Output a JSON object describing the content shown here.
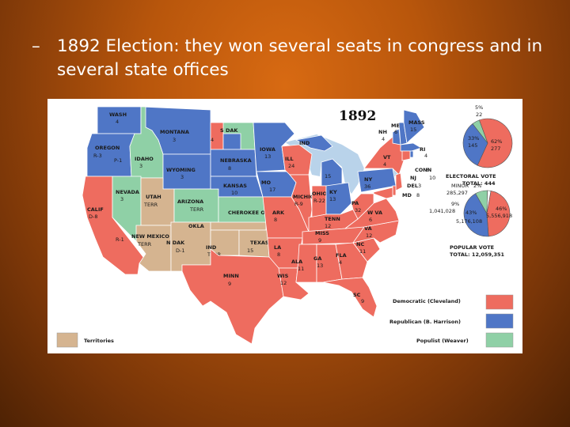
{
  "slide": {
    "bullet_dash": "–",
    "bullet_text": "1892 Election: they won several seats in congress and in several state offices"
  },
  "map": {
    "year": "1892",
    "colors": {
      "democratic": "#ee6c5f",
      "republican": "#4f76c6",
      "populist": "#8fd0a6",
      "territories": "#d5b490",
      "water": "#b9d3ea"
    },
    "states": [
      {
        "key": "wash",
        "name": "WASH",
        "ev": "4",
        "party": "republican"
      },
      {
        "key": "oregon",
        "name": "OREGON",
        "ev": "R-3",
        "ev2": "P-1",
        "party": "republican"
      },
      {
        "key": "calif",
        "name": "CALIF",
        "ev": "D-8",
        "ev2": "R-1",
        "party": "democratic"
      },
      {
        "key": "montana",
        "name": "MONTANA",
        "ev": "3",
        "party": "republican"
      },
      {
        "key": "idaho",
        "name": "IDAHO",
        "ev": "3",
        "party": "populist"
      },
      {
        "key": "nevada",
        "name": "NEVADA",
        "ev": "3",
        "party": "populist"
      },
      {
        "key": "wyoming",
        "name": "WYOMING",
        "ev": "3",
        "party": "republican"
      },
      {
        "key": "utah",
        "name": "UTAH",
        "ev": "TERR",
        "party": "territory"
      },
      {
        "key": "colorado",
        "name": "COLORADO",
        "ev": "4",
        "party": "populist"
      },
      {
        "key": "arizona",
        "name": "ARIZONA",
        "ev": "TERR",
        "party": "territory"
      },
      {
        "key": "newmexico",
        "name": "NEW MEXICO",
        "ev": "TERR",
        "party": "territory"
      },
      {
        "key": "ndak",
        "name": "N DAK",
        "ev": "D-1",
        "ev2": "R-1",
        "ev3": "P-1",
        "party": "populist"
      },
      {
        "key": "sdak",
        "name": "S DAK",
        "ev": "4",
        "party": "republican"
      },
      {
        "key": "nebraska",
        "name": "NEBRASKA",
        "ev": "8",
        "party": "republican"
      },
      {
        "key": "kansas",
        "name": "KANSAS",
        "ev": "10",
        "party": "populist"
      },
      {
        "key": "cherokee",
        "name": "CHEROKEE OUTLET",
        "ev": "",
        "party": "territory"
      },
      {
        "key": "okla",
        "name": "OKLA",
        "ev": "TERR",
        "party": "territory"
      },
      {
        "key": "ind_terr",
        "name": "IND",
        "ev": "TERR",
        "party": "territory"
      },
      {
        "key": "texas",
        "name": "TEXAS",
        "ev": "15",
        "party": "democratic"
      },
      {
        "key": "minn",
        "name": "MINN",
        "ev": "9",
        "party": "republican"
      },
      {
        "key": "iowa",
        "name": "IOWA",
        "ev": "13",
        "party": "republican"
      },
      {
        "key": "mo",
        "name": "MO",
        "ev": "17",
        "party": "democratic"
      },
      {
        "key": "ark",
        "name": "ARK",
        "ev": "8",
        "party": "democratic"
      },
      {
        "key": "la",
        "name": "LA",
        "ev": "8",
        "party": "democratic"
      },
      {
        "key": "wis",
        "name": "WIS",
        "ev": "12",
        "party": "democratic"
      },
      {
        "key": "ill",
        "name": "ILL",
        "ev": "24",
        "party": "democratic"
      },
      {
        "key": "mich",
        "name": "MICHIGAN",
        "ev": "R-9",
        "ev2": "D-5",
        "party": "republican"
      },
      {
        "key": "ind",
        "name": "IND",
        "ev": "15",
        "party": "democratic"
      },
      {
        "key": "ohio",
        "name": "OHIO",
        "ev": "R-22",
        "ev2": "D-1",
        "party": "republican"
      },
      {
        "key": "ky",
        "name": "KY",
        "ev": "13",
        "party": "democratic"
      },
      {
        "key": "tenn",
        "name": "TENN",
        "ev": "12",
        "party": "democratic"
      },
      {
        "key": "miss",
        "name": "MISS",
        "ev": "9",
        "party": "democratic"
      },
      {
        "key": "ala",
        "name": "ALA",
        "ev": "11",
        "party": "democratic"
      },
      {
        "key": "ga",
        "name": "GA",
        "ev": "13",
        "party": "democratic"
      },
      {
        "key": "fla",
        "name": "FLA",
        "ev": "4",
        "party": "democratic"
      },
      {
        "key": "sc",
        "name": "SC",
        "ev": "9",
        "party": "democratic"
      },
      {
        "key": "nc",
        "name": "NC",
        "ev": "11",
        "party": "democratic"
      },
      {
        "key": "va",
        "name": "VA",
        "ev": "12",
        "party": "democratic"
      },
      {
        "key": "wva",
        "name": "W VA",
        "ev": "6",
        "party": "democratic"
      },
      {
        "key": "pa",
        "name": "PA",
        "ev": "32",
        "party": "republican"
      },
      {
        "key": "ny",
        "name": "NY",
        "ev": "36",
        "party": "democratic"
      },
      {
        "key": "vt",
        "name": "VT",
        "ev": "4",
        "party": "republican"
      },
      {
        "key": "nh",
        "name": "NH",
        "ev": "4",
        "party": "republican"
      },
      {
        "key": "me",
        "name": "ME",
        "ev": "6",
        "party": "republican"
      },
      {
        "key": "mass",
        "name": "MASS",
        "ev": "15",
        "party": "republican"
      },
      {
        "key": "ri",
        "name": "RI",
        "ev": "4",
        "party": "republican"
      },
      {
        "key": "conn",
        "name": "CONN",
        "ev": "6",
        "party": "democratic"
      },
      {
        "key": "nj",
        "name": "NJ",
        "ev": "10",
        "party": "democratic"
      },
      {
        "key": "del",
        "name": "DEL",
        "ev": "3",
        "party": "democratic"
      },
      {
        "key": "md",
        "name": "MD",
        "ev": "8",
        "party": "democratic"
      }
    ],
    "electoral": {
      "title": "ELECTORAL VOTE",
      "total_label": "TOTAL: 444",
      "slices": [
        {
          "party": "democratic",
          "pct": "62%",
          "votes": "277",
          "value": 277
        },
        {
          "party": "republican",
          "pct": "33%",
          "votes": "145",
          "value": 145
        },
        {
          "party": "populist",
          "pct": "5%",
          "votes": "22",
          "value": 22
        }
      ]
    },
    "popular": {
      "title": "POPULAR VOTE",
      "total_label": "TOTAL: 12,059,351",
      "slices": [
        {
          "party": "democratic",
          "pct": "46%",
          "votes": "5,556,918",
          "value": 5556918
        },
        {
          "party": "republican",
          "pct": "43%",
          "votes": "5,176,108",
          "value": 5176108
        },
        {
          "party": "populist",
          "pct": "9%",
          "votes": "1,041,028",
          "value": 1041028
        },
        {
          "party": "minor",
          "pct": "2%",
          "votes": "285,297",
          "value": 285297
        }
      ],
      "minor_label": "MINOR"
    },
    "legend": [
      {
        "key": "democratic",
        "label": "Democratic (Cleveland)"
      },
      {
        "key": "republican",
        "label": "Republican (B. Harrison)"
      },
      {
        "key": "populist",
        "label": "Populist (Weaver)"
      }
    ],
    "territories_label": "Territories"
  }
}
